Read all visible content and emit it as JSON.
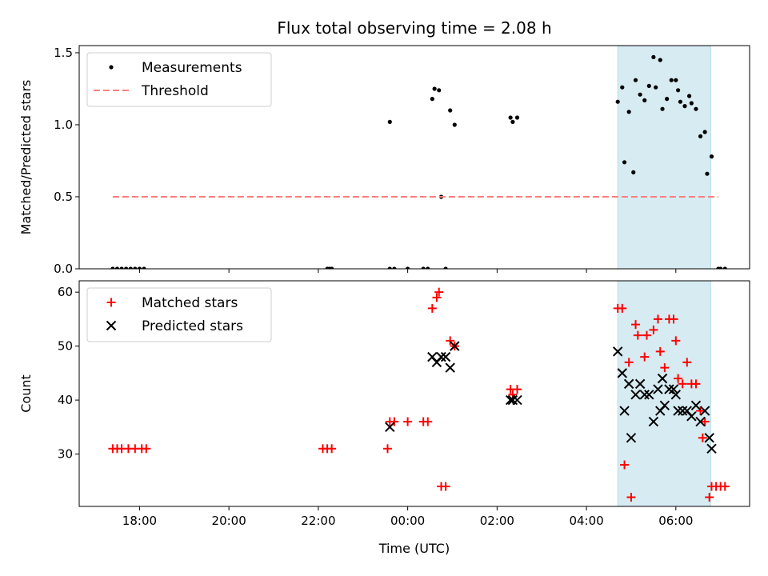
{
  "chart_data": {
    "title": "Flux total observing time = 2.08 h",
    "xlabel": "Time (UTC)",
    "x_unit": "hours since 00:00 UTC",
    "xlim": [
      -7.35,
      7.65
    ],
    "xticks": [
      {
        "value": -6,
        "label": "18:00"
      },
      {
        "value": -4,
        "label": "20:00"
      },
      {
        "value": -2,
        "label": "22:00"
      },
      {
        "value": 0,
        "label": "00:00"
      },
      {
        "value": 2,
        "label": "02:00"
      },
      {
        "value": 4,
        "label": "04:00"
      },
      {
        "value": 6,
        "label": "06:00"
      }
    ],
    "highlight_band": {
      "x_start": 4.7,
      "x_end": 6.78,
      "color": "#add8e6"
    },
    "panels": [
      {
        "type": "scatter",
        "ylabel": "Matched/Predicted stars",
        "ylim": [
          0,
          1.55
        ],
        "yticks": [
          {
            "value": 0,
            "label": "0.0"
          },
          {
            "value": 0.5,
            "label": "0.5"
          },
          {
            "value": 1.0,
            "label": "1.0"
          },
          {
            "value": 1.5,
            "label": "1.5"
          }
        ],
        "legend_location": "upper-left",
        "series": [
          {
            "name": "Measurements",
            "marker": "dot",
            "color": "#000000",
            "points": [
              [
                -6.6,
                0
              ],
              [
                -6.5,
                0
              ],
              [
                -6.4,
                0
              ],
              [
                -6.3,
                0
              ],
              [
                -6.2,
                0
              ],
              [
                -6.1,
                0
              ],
              [
                -6.0,
                0
              ],
              [
                -5.9,
                0
              ],
              [
                -1.8,
                0
              ],
              [
                -1.75,
                0
              ],
              [
                -1.7,
                0
              ],
              [
                -0.4,
                1.02
              ],
              [
                -0.4,
                0
              ],
              [
                -0.3,
                0
              ],
              [
                0,
                0
              ],
              [
                0.35,
                0
              ],
              [
                0.45,
                0
              ],
              [
                0.55,
                1.18
              ],
              [
                0.6,
                1.25
              ],
              [
                0.7,
                1.24
              ],
              [
                0.75,
                0.5
              ],
              [
                0.85,
                0
              ],
              [
                0.95,
                1.1
              ],
              [
                1.05,
                1.0
              ],
              [
                2.3,
                1.05
              ],
              [
                2.35,
                1.02
              ],
              [
                2.45,
                1.05
              ],
              [
                4.7,
                1.16
              ],
              [
                4.8,
                1.26
              ],
              [
                4.85,
                0.74
              ],
              [
                4.95,
                1.09
              ],
              [
                5.05,
                0.67
              ],
              [
                5.1,
                1.31
              ],
              [
                5.2,
                1.21
              ],
              [
                5.3,
                1.17
              ],
              [
                5.4,
                1.27
              ],
              [
                5.5,
                1.47
              ],
              [
                5.55,
                1.26
              ],
              [
                5.65,
                1.45
              ],
              [
                5.7,
                1.11
              ],
              [
                5.8,
                1.18
              ],
              [
                5.9,
                1.31
              ],
              [
                6.0,
                1.31
              ],
              [
                6.05,
                1.24
              ],
              [
                6.1,
                1.16
              ],
              [
                6.2,
                1.13
              ],
              [
                6.3,
                1.2
              ],
              [
                6.35,
                1.15
              ],
              [
                6.45,
                1.11
              ],
              [
                6.55,
                0.92
              ],
              [
                6.65,
                0.95
              ],
              [
                6.7,
                0.66
              ],
              [
                6.8,
                0.78
              ],
              [
                6.95,
                0
              ],
              [
                7.0,
                0
              ],
              [
                7.1,
                0
              ]
            ]
          },
          {
            "name": "Threshold",
            "style": "dashed-line",
            "color": "#ff7f7f",
            "points": [
              [
                -6.6,
                0.5
              ],
              [
                6.95,
                0.5
              ]
            ]
          }
        ]
      },
      {
        "type": "scatter",
        "ylabel": "Count",
        "ylim": [
          20.3,
          62.1
        ],
        "yticks": [
          {
            "value": 30,
            "label": "30"
          },
          {
            "value": 40,
            "label": "40"
          },
          {
            "value": 50,
            "label": "50"
          },
          {
            "value": 60,
            "label": "60"
          }
        ],
        "legend_location": "upper-left",
        "series": [
          {
            "name": "Matched stars",
            "marker": "plus",
            "color": "#ff0000",
            "points": [
              [
                -6.6,
                31
              ],
              [
                -6.5,
                31
              ],
              [
                -6.4,
                31
              ],
              [
                -6.25,
                31
              ],
              [
                -6.1,
                31
              ],
              [
                -5.95,
                31
              ],
              [
                -5.85,
                31
              ],
              [
                -1.9,
                31
              ],
              [
                -1.8,
                31
              ],
              [
                -1.7,
                31
              ],
              [
                -0.45,
                31
              ],
              [
                -0.4,
                36
              ],
              [
                -0.3,
                36
              ],
              [
                0,
                36
              ],
              [
                0.35,
                36
              ],
              [
                0.45,
                36
              ],
              [
                0.55,
                57
              ],
              [
                0.65,
                59
              ],
              [
                0.7,
                60
              ],
              [
                0.75,
                24
              ],
              [
                0.85,
                24
              ],
              [
                0.95,
                51
              ],
              [
                1.05,
                50
              ],
              [
                2.3,
                42
              ],
              [
                2.35,
                41
              ],
              [
                2.45,
                42
              ],
              [
                4.7,
                57
              ],
              [
                4.8,
                57
              ],
              [
                4.85,
                28
              ],
              [
                4.95,
                47
              ],
              [
                5.0,
                22
              ],
              [
                5.1,
                54
              ],
              [
                5.15,
                52
              ],
              [
                5.3,
                48
              ],
              [
                5.35,
                52
              ],
              [
                5.5,
                53
              ],
              [
                5.6,
                55
              ],
              [
                5.65,
                49
              ],
              [
                5.75,
                46
              ],
              [
                5.85,
                55
              ],
              [
                5.95,
                55
              ],
              [
                6.0,
                51
              ],
              [
                6.05,
                44
              ],
              [
                6.15,
                43
              ],
              [
                6.25,
                47
              ],
              [
                6.35,
                43
              ],
              [
                6.45,
                43
              ],
              [
                6.55,
                38
              ],
              [
                6.6,
                33
              ],
              [
                6.65,
                36
              ],
              [
                6.75,
                22
              ],
              [
                6.8,
                24
              ],
              [
                6.9,
                24
              ],
              [
                7.0,
                24
              ],
              [
                7.1,
                24
              ]
            ]
          },
          {
            "name": "Predicted stars",
            "marker": "x",
            "color": "#000000",
            "points": [
              [
                -0.4,
                35
              ],
              [
                0.55,
                48
              ],
              [
                0.65,
                47
              ],
              [
                0.75,
                48
              ],
              [
                0.85,
                48
              ],
              [
                0.95,
                46
              ],
              [
                1.05,
                50
              ],
              [
                2.3,
                40
              ],
              [
                2.35,
                40
              ],
              [
                2.45,
                40
              ],
              [
                4.7,
                49
              ],
              [
                4.8,
                45
              ],
              [
                4.85,
                38
              ],
              [
                4.95,
                43
              ],
              [
                5.0,
                33
              ],
              [
                5.1,
                41
              ],
              [
                5.2,
                43
              ],
              [
                5.3,
                41
              ],
              [
                5.4,
                41
              ],
              [
                5.5,
                36
              ],
              [
                5.6,
                42
              ],
              [
                5.65,
                38
              ],
              [
                5.7,
                44
              ],
              [
                5.75,
                39
              ],
              [
                5.85,
                42
              ],
              [
                5.95,
                42
              ],
              [
                6.0,
                41
              ],
              [
                6.05,
                38
              ],
              [
                6.15,
                38
              ],
              [
                6.25,
                38
              ],
              [
                6.35,
                37
              ],
              [
                6.45,
                39
              ],
              [
                6.55,
                36
              ],
              [
                6.65,
                38
              ],
              [
                6.75,
                33
              ],
              [
                6.8,
                31
              ]
            ]
          }
        ]
      }
    ]
  }
}
